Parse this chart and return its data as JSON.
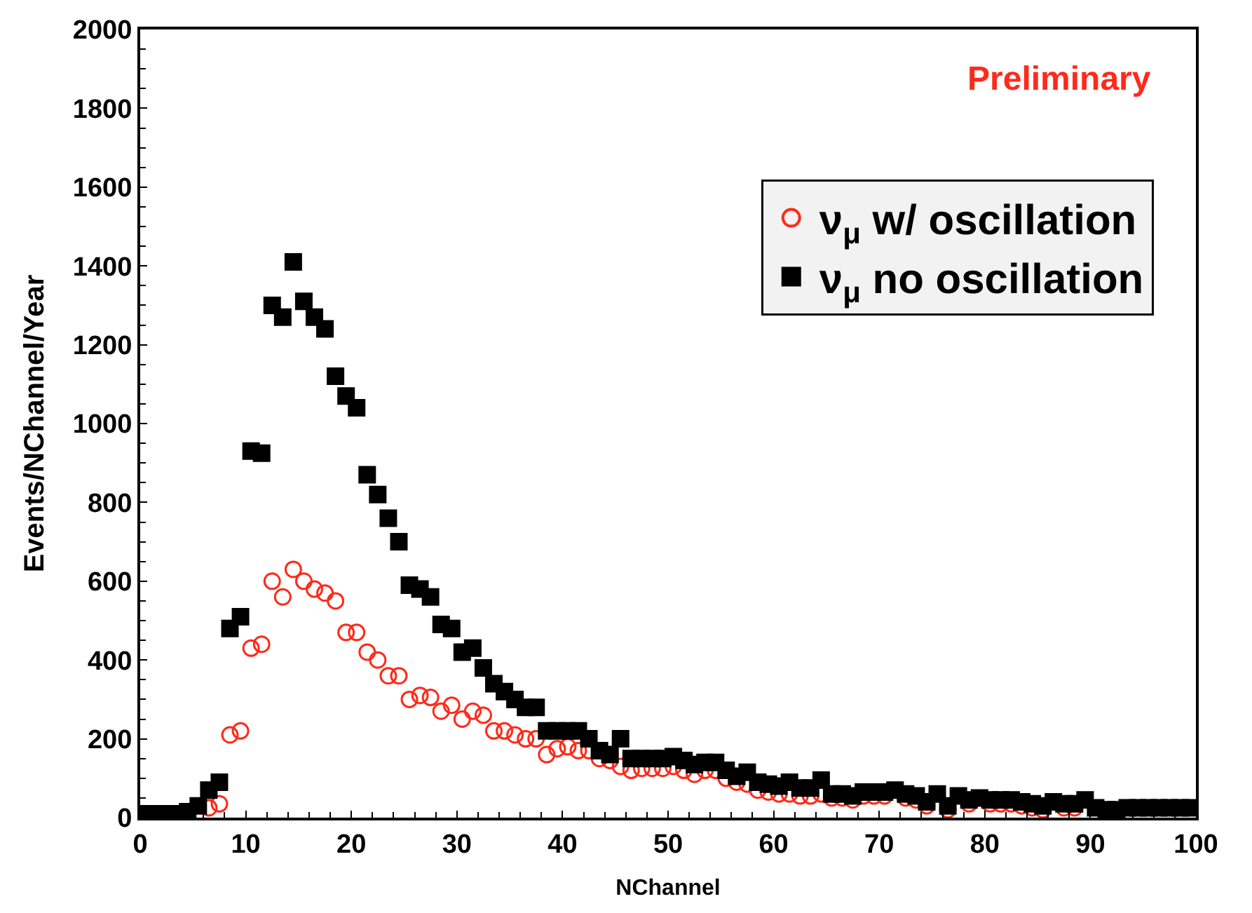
{
  "chart_data": {
    "type": "scatter",
    "xlabel": "NChannel",
    "ylabel": "Events/NChannel/Year",
    "annotations": [
      "Preliminary"
    ],
    "xlim": [
      0,
      100
    ],
    "ylim": [
      0,
      2000
    ],
    "xticks": [
      0,
      10,
      20,
      30,
      40,
      50,
      60,
      70,
      80,
      90,
      100
    ],
    "yticks": [
      0,
      200,
      400,
      600,
      800,
      1000,
      1200,
      1400,
      1600,
      1800,
      2000
    ],
    "legend": "top right",
    "x": [
      0.5,
      1.5,
      2.5,
      3.5,
      4.5,
      5.5,
      6.5,
      7.5,
      8.5,
      9.5,
      10.5,
      11.5,
      12.5,
      13.5,
      14.5,
      15.5,
      16.5,
      17.5,
      18.5,
      19.5,
      20.5,
      21.5,
      22.5,
      23.5,
      24.5,
      25.5,
      26.5,
      27.5,
      28.5,
      29.5,
      30.5,
      31.5,
      32.5,
      33.5,
      34.5,
      35.5,
      36.5,
      37.5,
      38.5,
      39.5,
      40.5,
      41.5,
      42.5,
      43.5,
      44.5,
      45.5,
      46.5,
      47.5,
      48.5,
      49.5,
      50.5,
      51.5,
      52.5,
      53.5,
      54.5,
      55.5,
      56.5,
      57.5,
      58.5,
      59.5,
      60.5,
      61.5,
      62.5,
      63.5,
      64.5,
      65.5,
      66.5,
      67.5,
      68.5,
      69.5,
      70.5,
      71.5,
      72.5,
      73.5,
      74.5,
      75.5,
      76.5,
      77.5,
      78.5,
      79.5,
      80.5,
      81.5,
      82.5,
      83.5,
      84.5,
      85.5,
      86.5,
      87.5,
      88.5,
      89.5,
      90.5,
      91.5,
      92.5,
      93.5,
      94.5,
      95.5,
      96.5,
      97.5,
      98.5,
      99.5
    ],
    "series": [
      {
        "name": "ν$_{μ}$ w/ oscillation",
        "color": "#ff2a1a",
        "marker": "circle-open",
        "values": [
          null,
          null,
          null,
          null,
          null,
          null,
          25,
          35,
          210,
          220,
          430,
          440,
          600,
          560,
          630,
          600,
          580,
          570,
          550,
          470,
          470,
          420,
          400,
          360,
          360,
          300,
          310,
          305,
          270,
          285,
          250,
          270,
          260,
          220,
          220,
          210,
          200,
          200,
          160,
          175,
          180,
          170,
          170,
          150,
          145,
          130,
          120,
          125,
          125,
          125,
          130,
          120,
          110,
          120,
          120,
          100,
          90,
          85,
          70,
          65,
          60,
          60,
          55,
          55,
          60,
          50,
          50,
          45,
          55,
          55,
          55,
          null,
          50,
          45,
          30,
          null,
          20,
          null,
          35,
          null,
          35,
          35,
          35,
          30,
          25,
          20,
          null,
          25,
          25,
          null,
          null,
          null,
          null,
          null,
          null,
          null,
          null,
          null,
          null,
          null
        ]
      },
      {
        "name": "ν$_{μ}$ no oscillation",
        "color": "#000000",
        "marker": "square",
        "values": [
          10,
          10,
          10,
          10,
          15,
          30,
          70,
          90,
          480,
          510,
          930,
          925,
          1300,
          1270,
          1410,
          1310,
          1270,
          1240,
          1120,
          1070,
          1040,
          870,
          820,
          760,
          700,
          590,
          580,
          560,
          490,
          480,
          420,
          430,
          380,
          340,
          320,
          300,
          280,
          280,
          220,
          220,
          220,
          220,
          200,
          170,
          160,
          200,
          150,
          150,
          150,
          150,
          155,
          145,
          135,
          140,
          140,
          120,
          105,
          115,
          90,
          85,
          80,
          90,
          75,
          75,
          95,
          60,
          60,
          55,
          65,
          65,
          65,
          70,
          60,
          55,
          40,
          60,
          30,
          55,
          45,
          50,
          45,
          45,
          45,
          40,
          35,
          30,
          40,
          35,
          35,
          45,
          25,
          20,
          20,
          25,
          25,
          25,
          25,
          25,
          25,
          25
        ]
      }
    ]
  }
}
